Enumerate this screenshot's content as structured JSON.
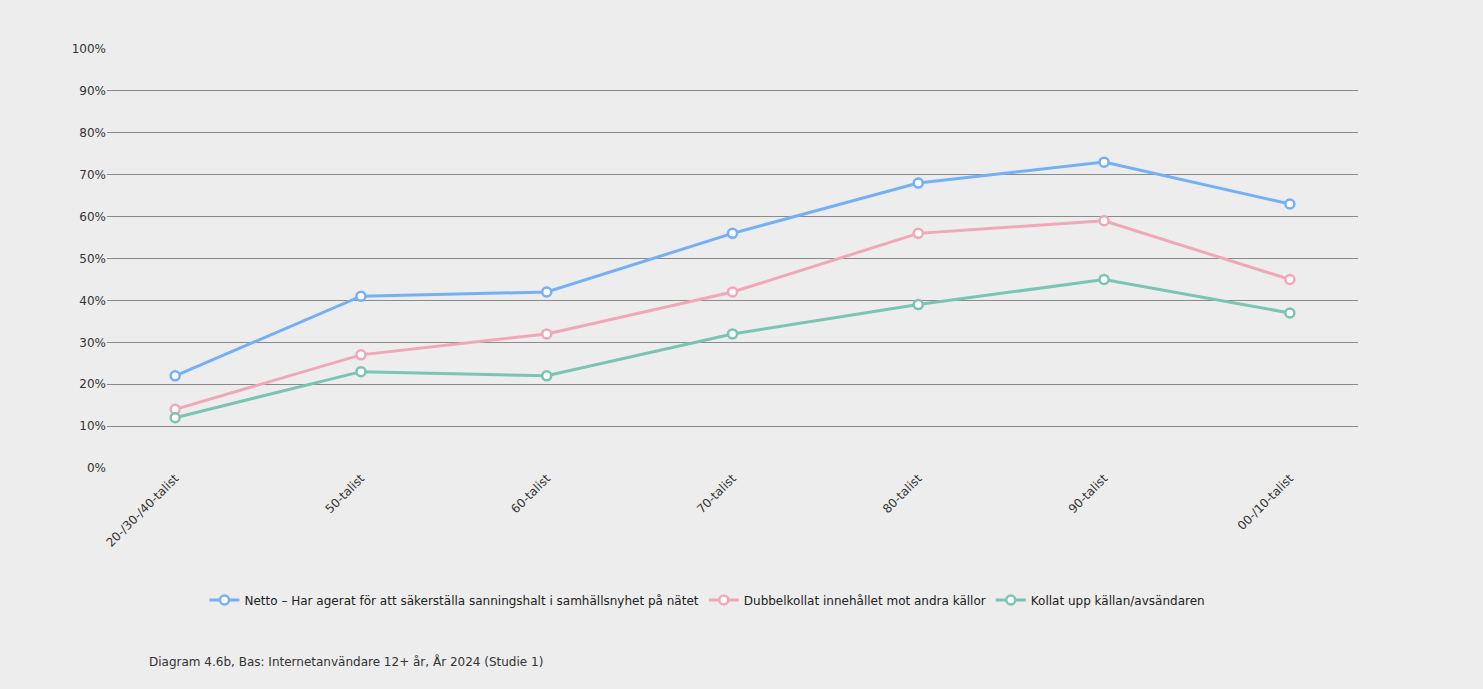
{
  "chart_data": {
    "type": "line",
    "categories": [
      "20-/30-/40-talist",
      "50-talist",
      "60-talist",
      "70-talist",
      "80-talist",
      "90-talist",
      "00-/10-talist"
    ],
    "series": [
      {
        "name": "Netto – Har agerat för att säkerställa sanningshalt i samhällsnyhet på nätet",
        "color": "#74b0f5",
        "marker": "circle",
        "values": [
          22,
          41,
          42,
          56,
          68,
          73,
          63
        ]
      },
      {
        "name": "Dubbelkollat innehållet mot andra källor",
        "color": "#f0a7b7",
        "marker": "circle",
        "values": [
          14,
          27,
          32,
          42,
          56,
          59,
          45
        ]
      },
      {
        "name": "Kollat upp källan/avsändaren",
        "color": "#79c4b2",
        "marker": "circle",
        "values": [
          12,
          23,
          22,
          32,
          39,
          45,
          37
        ]
      }
    ],
    "ylim": [
      0,
      100
    ],
    "yticks": [
      {
        "value": 0,
        "label": "0%"
      },
      {
        "value": 10,
        "label": "10%"
      },
      {
        "value": 20,
        "label": "20%"
      },
      {
        "value": 30,
        "label": "30%"
      },
      {
        "value": 40,
        "label": "40%"
      },
      {
        "value": 50,
        "label": "50%"
      },
      {
        "value": 60,
        "label": "60%"
      },
      {
        "value": 70,
        "label": "70%"
      },
      {
        "value": 80,
        "label": "80%"
      },
      {
        "value": 90,
        "label": "90%"
      },
      {
        "value": 100,
        "label": "100%"
      }
    ],
    "grid": true,
    "legend": "bottom",
    "annotations": [
      "Diagram 4.6b, Bas: Internetanvändare 12+ år, År 2024 (Studie 1)"
    ]
  }
}
